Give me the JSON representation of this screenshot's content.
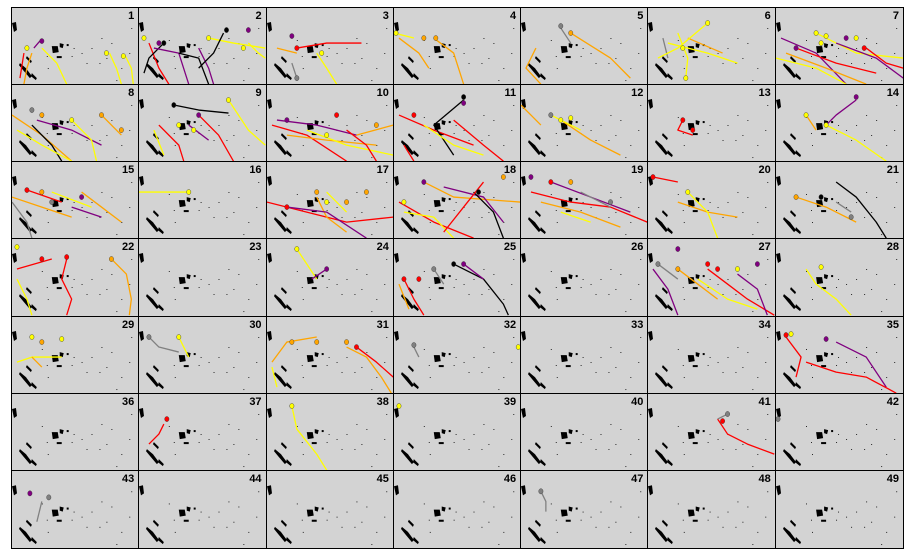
{
  "panels": [
    {
      "label": "1"
    },
    {
      "label": "2"
    },
    {
      "label": "3"
    },
    {
      "label": "4"
    },
    {
      "label": "5"
    },
    {
      "label": "6"
    },
    {
      "label": "7"
    },
    {
      "label": "8"
    },
    {
      "label": "9"
    },
    {
      "label": "10"
    },
    {
      "label": "11"
    },
    {
      "label": "12"
    },
    {
      "label": "13"
    },
    {
      "label": "14"
    },
    {
      "label": "15"
    },
    {
      "label": "16"
    },
    {
      "label": "17"
    },
    {
      "label": "18"
    },
    {
      "label": "19"
    },
    {
      "label": "20"
    },
    {
      "label": "21"
    },
    {
      "label": "22"
    },
    {
      "label": "23"
    },
    {
      "label": "24"
    },
    {
      "label": "25"
    },
    {
      "label": "26"
    },
    {
      "label": "27"
    },
    {
      "label": "28"
    },
    {
      "label": "29"
    },
    {
      "label": "30"
    },
    {
      "label": "31"
    },
    {
      "label": "32"
    },
    {
      "label": "33"
    },
    {
      "label": "34"
    },
    {
      "label": "35"
    },
    {
      "label": "36"
    },
    {
      "label": "37"
    },
    {
      "label": "38"
    },
    {
      "label": "39"
    },
    {
      "label": "40"
    },
    {
      "label": "41"
    },
    {
      "label": "42"
    },
    {
      "label": "43"
    },
    {
      "label": "44"
    },
    {
      "label": "45"
    },
    {
      "label": "46"
    },
    {
      "label": "47"
    },
    {
      "label": "48"
    },
    {
      "label": "49"
    }
  ],
  "colors": {
    "panel_background": "#d3d3d3",
    "land": "#000000",
    "track_colors": [
      "#ffff00",
      "#ffa500",
      "#ff0000",
      "#800080",
      "#000000",
      "#808080"
    ]
  }
}
